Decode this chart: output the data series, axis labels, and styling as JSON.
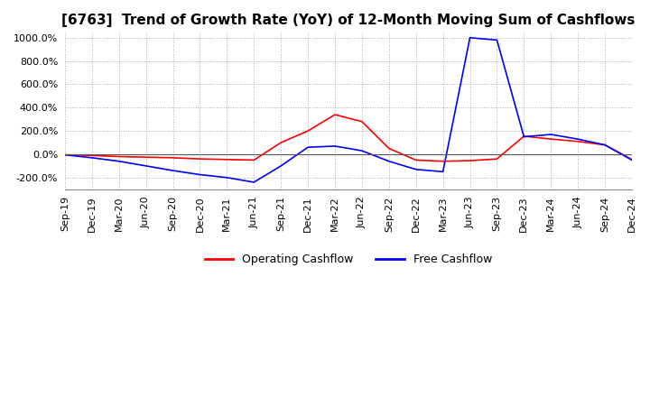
{
  "title": "[6763]  Trend of Growth Rate (YoY) of 12-Month Moving Sum of Cashflows",
  "ylim": [
    -300,
    1050
  ],
  "yticks": [
    -200,
    0,
    200,
    400,
    600,
    800,
    1000
  ],
  "ytick_labels": [
    "-200.0%",
    "0.0%",
    "200.0%",
    "400.0%",
    "600.0%",
    "800.0%",
    "1000.0%"
  ],
  "background_color": "#ffffff",
  "grid_color": "#aaaaaa",
  "legend_labels": [
    "Operating Cashflow",
    "Free Cashflow"
  ],
  "legend_colors": [
    "#ff0000",
    "#0000ff"
  ],
  "x_labels": [
    "Sep-19",
    "Dec-19",
    "Mar-20",
    "Jun-20",
    "Sep-20",
    "Dec-20",
    "Mar-21",
    "Jun-21",
    "Sep-21",
    "Dec-21",
    "Mar-22",
    "Jun-22",
    "Sep-22",
    "Dec-22",
    "Mar-23",
    "Jun-23",
    "Sep-23",
    "Dec-23",
    "Mar-24",
    "Jun-24",
    "Sep-24",
    "Dec-24"
  ],
  "operating_cashflow": [
    -5,
    -10,
    -20,
    -25,
    -30,
    -40,
    -45,
    -50,
    100,
    200,
    340,
    280,
    50,
    -50,
    -60,
    -55,
    -40,
    155,
    130,
    110,
    80,
    -45
  ],
  "free_cashflow": [
    -5,
    -30,
    -60,
    -100,
    -140,
    -175,
    -200,
    -240,
    -100,
    60,
    70,
    30,
    -60,
    -130,
    -150,
    1000,
    980,
    150,
    170,
    130,
    80,
    -50
  ],
  "title_fontsize": 11,
  "tick_fontsize": 8,
  "legend_fontsize": 9
}
